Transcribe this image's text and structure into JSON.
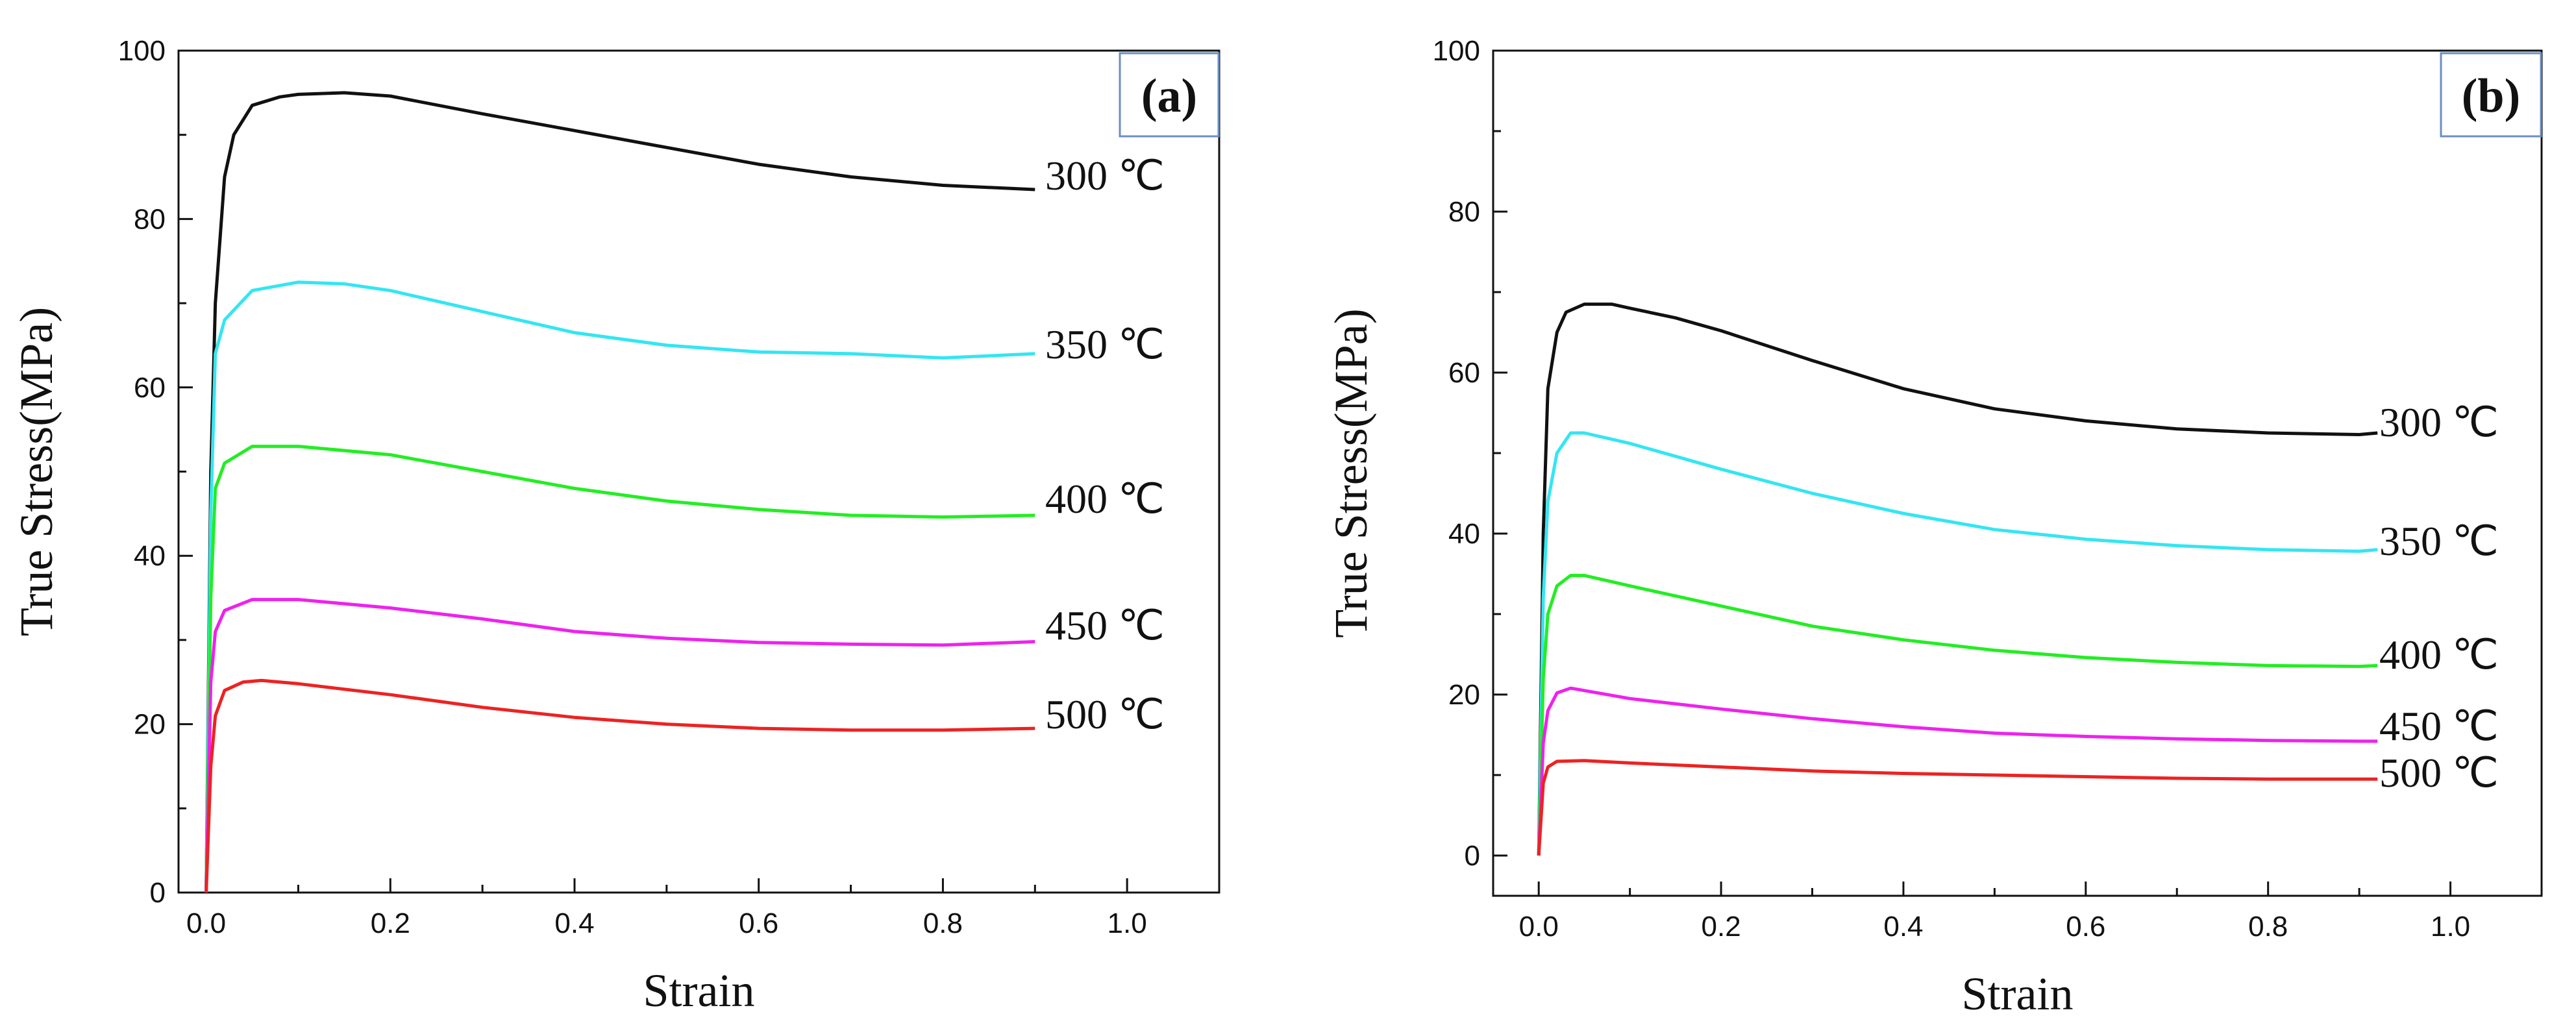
{
  "chart_data": [
    {
      "type": "line",
      "panel_label": "(a)",
      "xlabel": "Strain",
      "ylabel": "True Stress(MPa)",
      "xlim": [
        -0.03,
        1.1
      ],
      "ylim": [
        0,
        100
      ],
      "xticks": [
        "0.0",
        "0.2",
        "0.4",
        "0.6",
        "0.8",
        "1.0"
      ],
      "yticks": [
        "0",
        "20",
        "40",
        "60",
        "80",
        "100"
      ],
      "series": [
        {
          "name": "300 ℃",
          "color": "#111111",
          "x": [
            0,
            0.005,
            0.01,
            0.02,
            0.03,
            0.05,
            0.08,
            0.1,
            0.15,
            0.2,
            0.3,
            0.4,
            0.5,
            0.6,
            0.7,
            0.8,
            0.9
          ],
          "y": [
            0,
            50,
            70,
            85,
            90,
            93.5,
            94.5,
            94.8,
            95,
            94.6,
            92.5,
            90.5,
            88.5,
            86.5,
            85,
            84,
            83.5
          ]
        },
        {
          "name": "350 ℃",
          "color": "#33e6f2",
          "x": [
            0,
            0.005,
            0.01,
            0.02,
            0.05,
            0.1,
            0.15,
            0.2,
            0.3,
            0.4,
            0.5,
            0.6,
            0.7,
            0.8,
            0.9
          ],
          "y": [
            0,
            45,
            64,
            68,
            71.5,
            72.5,
            72.3,
            71.5,
            69,
            66.5,
            65,
            64.2,
            64,
            63.5,
            64
          ]
        },
        {
          "name": "400 ℃",
          "color": "#22ee22",
          "x": [
            0,
            0.005,
            0.01,
            0.02,
            0.05,
            0.1,
            0.2,
            0.3,
            0.4,
            0.5,
            0.6,
            0.7,
            0.8,
            0.9
          ],
          "y": [
            0,
            35,
            48,
            51,
            53,
            53,
            52,
            50,
            48,
            46.5,
            45.5,
            44.8,
            44.6,
            44.8
          ]
        },
        {
          "name": "450 ℃",
          "color": "#ee22ee",
          "x": [
            0,
            0.005,
            0.01,
            0.02,
            0.05,
            0.1,
            0.2,
            0.3,
            0.4,
            0.5,
            0.6,
            0.7,
            0.8,
            0.9
          ],
          "y": [
            0,
            25,
            31,
            33.5,
            34.8,
            34.8,
            33.8,
            32.5,
            31,
            30.2,
            29.7,
            29.5,
            29.4,
            29.8
          ]
        },
        {
          "name": "500 ℃",
          "color": "#ee2222",
          "x": [
            0,
            0.005,
            0.01,
            0.02,
            0.04,
            0.06,
            0.1,
            0.2,
            0.3,
            0.4,
            0.5,
            0.6,
            0.7,
            0.8,
            0.9
          ],
          "y": [
            0,
            15,
            21,
            24,
            25,
            25.2,
            24.8,
            23.5,
            22,
            20.8,
            20,
            19.5,
            19.3,
            19.3,
            19.5
          ]
        }
      ]
    },
    {
      "type": "line",
      "panel_label": "(b)",
      "xlabel": "Strain",
      "ylabel": "True Stress(MPa)",
      "xlim": [
        -0.05,
        1.1
      ],
      "ylim": [
        -5,
        100
      ],
      "xticks": [
        "0.0",
        "0.2",
        "0.4",
        "0.6",
        "0.8",
        "1.0"
      ],
      "yticks": [
        "0",
        "20",
        "40",
        "60",
        "80",
        "100"
      ],
      "series": [
        {
          "name": "300 ℃",
          "color": "#111111",
          "x": [
            0,
            0.005,
            0.01,
            0.02,
            0.03,
            0.05,
            0.08,
            0.1,
            0.15,
            0.2,
            0.3,
            0.4,
            0.5,
            0.6,
            0.7,
            0.8,
            0.9,
            0.92
          ],
          "y": [
            0,
            40,
            58,
            65,
            67.5,
            68.5,
            68.5,
            68,
            66.8,
            65.2,
            61.5,
            58,
            55.5,
            54,
            53,
            52.5,
            52.3,
            52.5
          ]
        },
        {
          "name": "350 ℃",
          "color": "#33e6f2",
          "x": [
            0,
            0.005,
            0.01,
            0.02,
            0.035,
            0.05,
            0.1,
            0.2,
            0.3,
            0.4,
            0.5,
            0.6,
            0.7,
            0.8,
            0.9,
            0.92
          ],
          "y": [
            0,
            32,
            44,
            50,
            52.5,
            52.5,
            51.2,
            48,
            45,
            42.5,
            40.5,
            39.3,
            38.5,
            38,
            37.8,
            38
          ]
        },
        {
          "name": "400 ℃",
          "color": "#22ee22",
          "x": [
            0,
            0.005,
            0.01,
            0.02,
            0.035,
            0.05,
            0.1,
            0.2,
            0.3,
            0.4,
            0.5,
            0.6,
            0.7,
            0.8,
            0.9,
            0.92
          ],
          "y": [
            0,
            22,
            30,
            33.5,
            34.8,
            34.8,
            33.5,
            31,
            28.5,
            26.8,
            25.5,
            24.6,
            24,
            23.6,
            23.5,
            23.6
          ]
        },
        {
          "name": "450 ℃",
          "color": "#ee22ee",
          "x": [
            0,
            0.005,
            0.01,
            0.02,
            0.035,
            0.05,
            0.1,
            0.2,
            0.3,
            0.4,
            0.5,
            0.6,
            0.7,
            0.8,
            0.9,
            0.92
          ],
          "y": [
            0,
            14,
            18,
            20.2,
            20.8,
            20.5,
            19.5,
            18.2,
            17,
            16,
            15.2,
            14.8,
            14.5,
            14.3,
            14.2,
            14.2
          ]
        },
        {
          "name": "500 ℃",
          "color": "#ee2222",
          "x": [
            0,
            0.005,
            0.01,
            0.02,
            0.05,
            0.1,
            0.2,
            0.3,
            0.4,
            0.5,
            0.6,
            0.7,
            0.8,
            0.9,
            0.92
          ],
          "y": [
            0,
            9,
            11,
            11.7,
            11.8,
            11.5,
            11,
            10.5,
            10.2,
            10,
            9.8,
            9.6,
            9.5,
            9.5,
            9.5
          ]
        }
      ]
    }
  ]
}
